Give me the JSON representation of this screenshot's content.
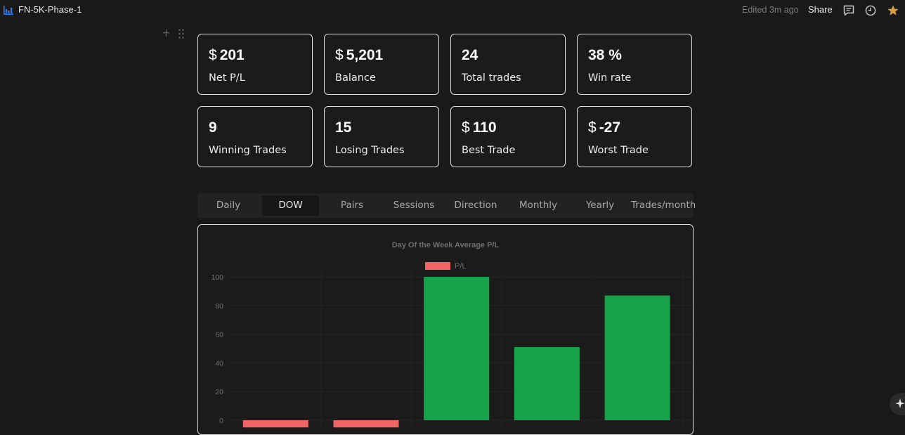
{
  "topbar": {
    "app_icon": "chart-bars-icon",
    "title": "FN-5K-Phase-1",
    "edited": "Edited 3m ago",
    "share_label": "Share",
    "icons": [
      "comment-icon",
      "clock-icon",
      "star-icon"
    ],
    "star_color": "#d9a03f",
    "accent": "#2f80ed"
  },
  "stats": [
    {
      "currency": "$",
      "value": "201",
      "label": "Net P/L"
    },
    {
      "currency": "$",
      "value": "5,201",
      "label": "Balance"
    },
    {
      "currency": "",
      "value": "24",
      "label": "Total trades"
    },
    {
      "currency": "",
      "value": "38 %",
      "label": "Win rate"
    },
    {
      "currency": "",
      "value": "9",
      "label": "Winning Trades"
    },
    {
      "currency": "",
      "value": "15",
      "label": "Losing Trades"
    },
    {
      "currency": "$",
      "value": "110",
      "label": "Best Trade"
    },
    {
      "currency": "$",
      "value": "-27",
      "label": "Worst Trade"
    }
  ],
  "tabs": [
    {
      "label": "Daily",
      "active": false
    },
    {
      "label": "DOW",
      "active": true
    },
    {
      "label": "Pairs",
      "active": false
    },
    {
      "label": "Sessions",
      "active": false
    },
    {
      "label": "Direction",
      "active": false
    },
    {
      "label": "Monthly",
      "active": false
    },
    {
      "label": "Yearly",
      "active": false
    },
    {
      "label": "Trades/month",
      "active": false
    }
  ],
  "chart_data": {
    "type": "bar",
    "title": "Day Of the Week Average P/L",
    "legend": {
      "label": "P/L",
      "position": "top-center"
    },
    "ylim": [
      0,
      100
    ],
    "yticks": [
      0,
      20,
      40,
      60,
      80,
      100
    ],
    "values": [
      -5,
      -5,
      100,
      51,
      87
    ],
    "colors": {
      "positive": "#16a34a",
      "negative": "#f06464"
    },
    "grid": true
  }
}
